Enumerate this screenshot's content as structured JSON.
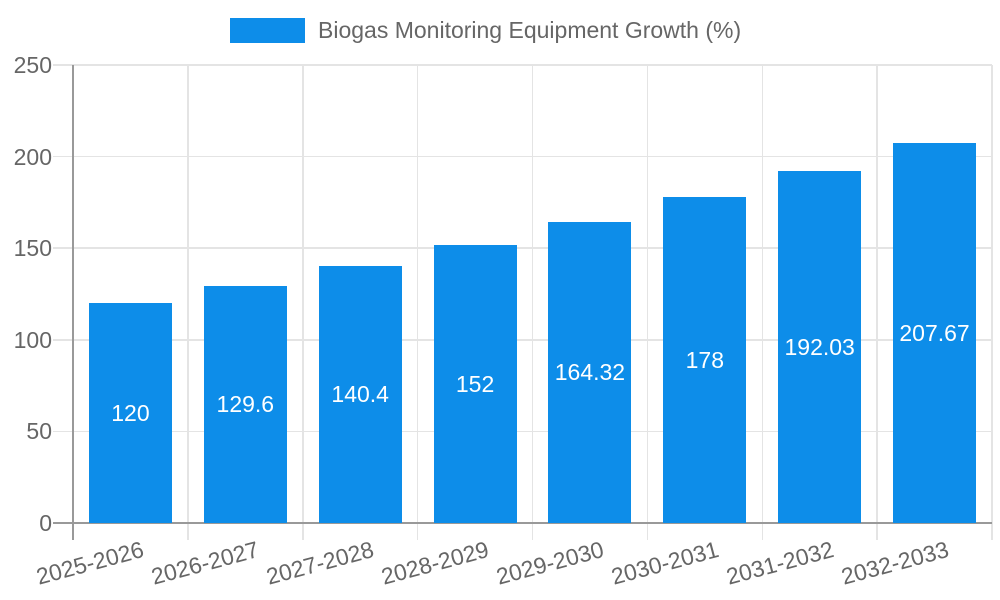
{
  "chart_data": {
    "type": "bar",
    "title": "Biogas Monitoring Equipment Growth (%)",
    "legend": {
      "label": "Biogas Monitoring Equipment Growth (%)",
      "position": "top-center"
    },
    "categories": [
      "2025-2026",
      "2026-2027",
      "2027-2028",
      "2028-2029",
      "2029-2030",
      "2030-2031",
      "2031-2032",
      "2032-2033"
    ],
    "series": [
      {
        "name": "Biogas Monitoring Equipment Growth (%)",
        "values": [
          120,
          129.6,
          140.4,
          152,
          164.32,
          178,
          192.03,
          207.67
        ],
        "value_labels": [
          "120",
          "129.6",
          "140.4",
          "152",
          "164.32",
          "178",
          "192.03",
          "207.67"
        ]
      }
    ],
    "xlabel": "",
    "ylabel": "",
    "ylim": [
      0,
      250
    ],
    "yticks": [
      0,
      50,
      100,
      150,
      200,
      250
    ],
    "ytick_labels": [
      "0",
      "50",
      "100",
      "150",
      "200",
      "250"
    ],
    "grid": true,
    "x_tick_rotation_deg": -15,
    "value_label_position": "inside-center",
    "colors": {
      "bar": "#0d8de9",
      "value_label": "#ffffff",
      "axis_line": "#999999",
      "grid_line": "#e4e4e4",
      "tick_label": "#666666",
      "legend_text": "#666666",
      "background": "#ffffff"
    }
  }
}
